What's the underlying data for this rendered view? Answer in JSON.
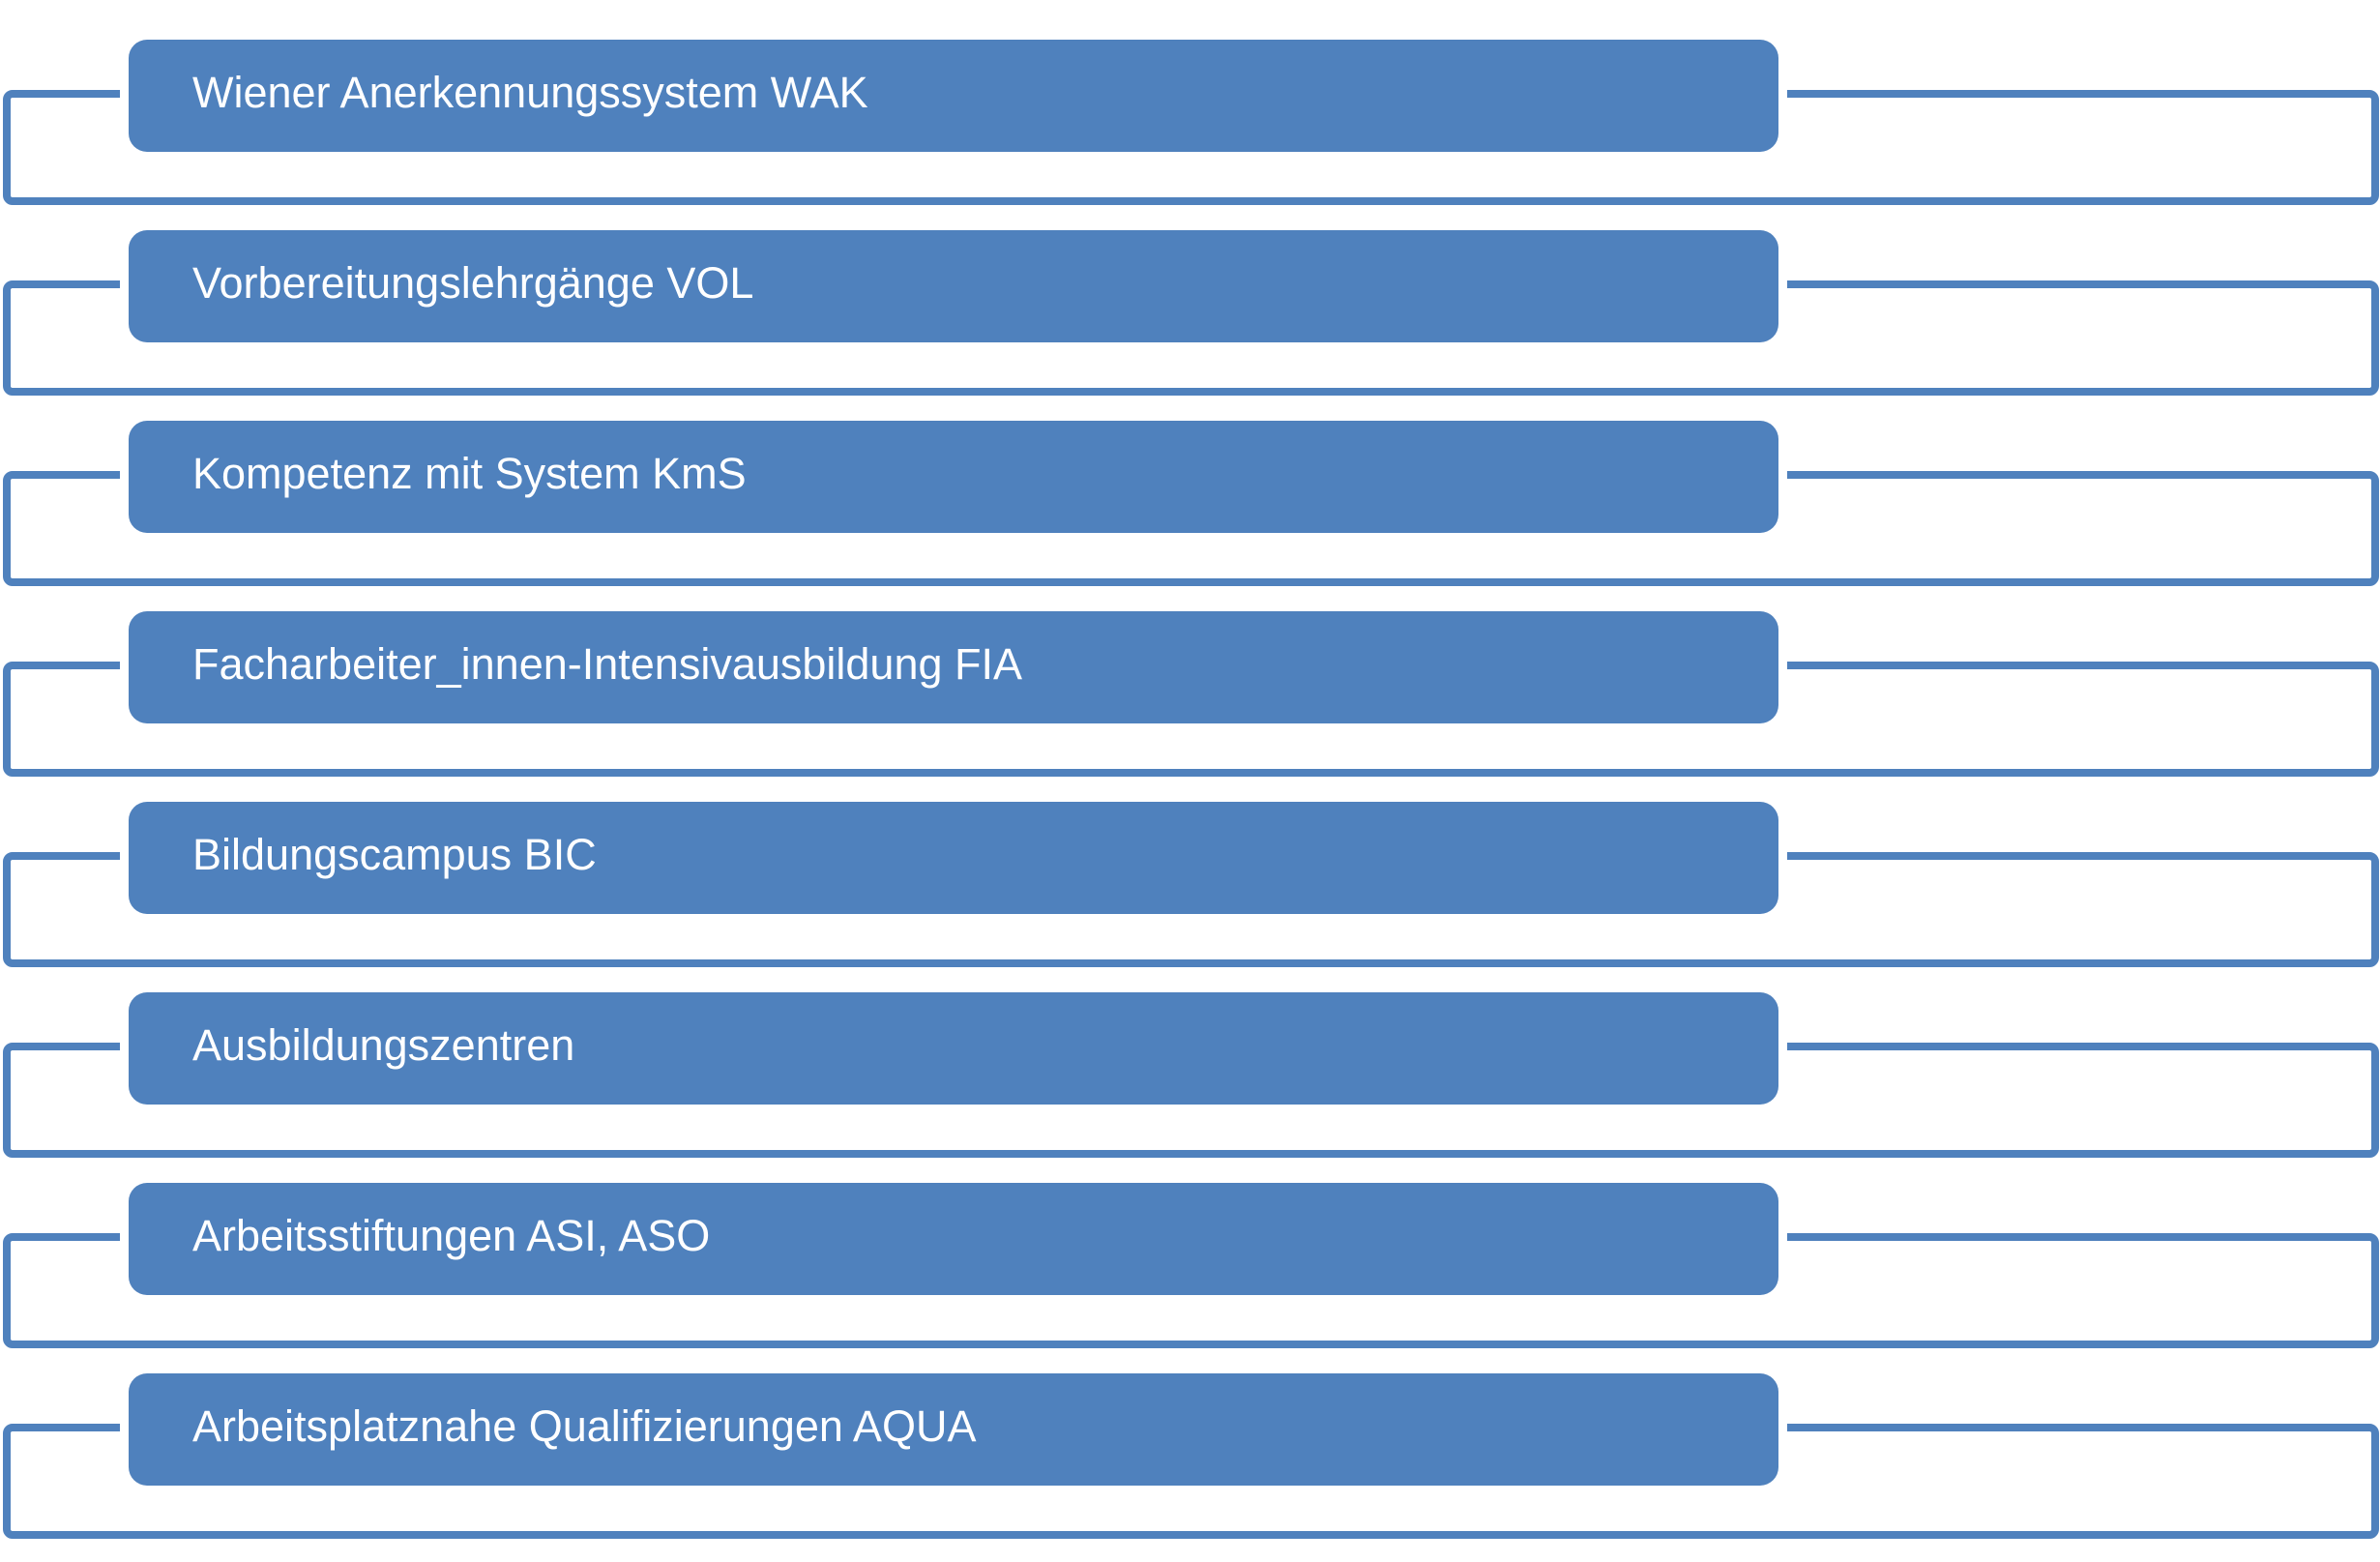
{
  "diagram": {
    "type": "horizontal-box-list",
    "accent_color": "#4f81bd",
    "text_color": "#ffffff",
    "background_color": "#ffffff",
    "items": [
      {
        "label": "Wiener Anerkennungssystem WAK"
      },
      {
        "label": "Vorbereitungslehrgänge VOL"
      },
      {
        "label": "Kompetenz mit System KmS"
      },
      {
        "label": "Facharbeiter_innen-Intensivausbildung FIA"
      },
      {
        "label": "Bildungscampus BIC"
      },
      {
        "label": "Ausbildungszentren"
      },
      {
        "label": "Arbeitsstiftungen ASI, ASO"
      },
      {
        "label": "Arbeitsplatznahe Qualifizierungen AQUA"
      }
    ]
  }
}
